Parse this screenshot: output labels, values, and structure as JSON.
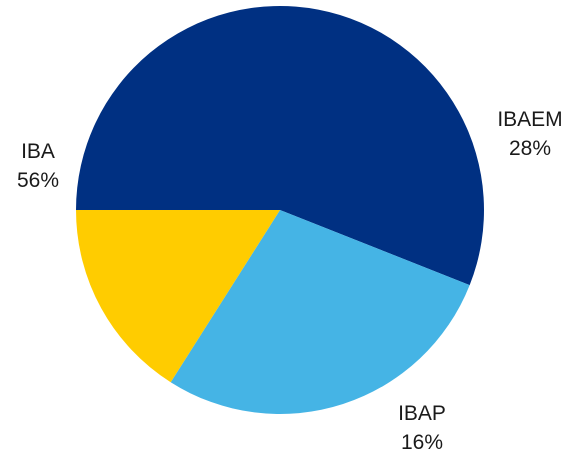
{
  "chart_data": {
    "type": "pie",
    "start_angle_deg": 180,
    "direction": "clockwise",
    "legend": "none",
    "slices": [
      {
        "label": "IBA",
        "value": 56,
        "display": "56%",
        "color": "#003082"
      },
      {
        "label": "IBAEM",
        "value": 28,
        "display": "28%",
        "color": "#45B4E5"
      },
      {
        "label": "IBAP",
        "value": 16,
        "display": "16%",
        "color": "#FFCC00"
      }
    ]
  }
}
